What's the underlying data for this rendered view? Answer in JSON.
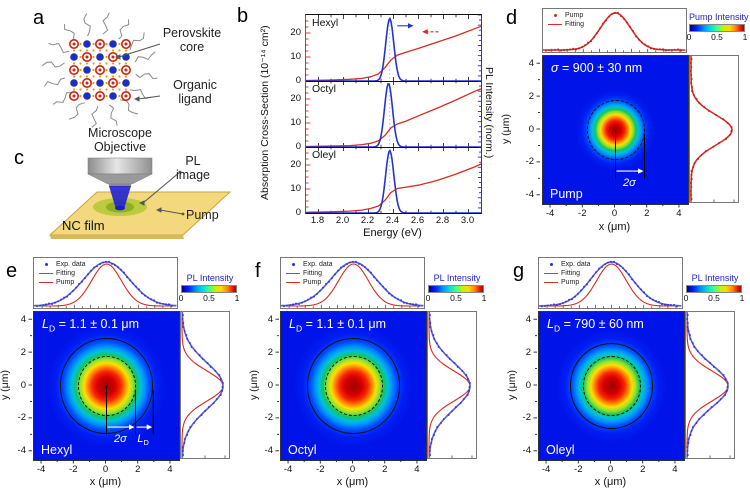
{
  "panel_a": {
    "letter": "a",
    "core_label": "Perovskite\ncore",
    "ligand_label": "Organic\nligand",
    "colors": {
      "cation_red": "#cc2310",
      "anion_blue": "#1c2fbe",
      "lattice_orange": "#f59a00",
      "ligand_gray": "#8a8a8a"
    }
  },
  "panel_c": {
    "letter": "c",
    "objective_label": "Microscope\nObjective",
    "pl_image_label": "PL\nimage",
    "pump_label": "Pump",
    "film_label": "NC film",
    "colors": {
      "film": "#f4d87e",
      "cone": "#2525cf",
      "spot": "#b7c93b"
    }
  },
  "chart_data": [
    {
      "id": "b",
      "letter": "b",
      "type": "line",
      "xlabel": "Energy (eV)",
      "ylabel_left": "Absorption Cross-Section (10⁻¹⁴ cm²)",
      "ylabel_right": "PL Intensity (norm.)",
      "xlim": [
        1.7,
        3.1
      ],
      "ylim": [
        0,
        27.5
      ],
      "x_ticks": [
        "1.8",
        "2.0",
        "2.2",
        "2.4",
        "2.6",
        "2.8",
        "3.0"
      ],
      "y_ticks": [
        0,
        10,
        20
      ],
      "pl_peak_ev": 2.37,
      "colors": {
        "absorption": "#d92b20",
        "pl": "#2433cf"
      },
      "subplots": [
        {
          "label": "Hexyl",
          "absorption": {
            "x": [
              1.7,
              1.9,
              2.05,
              2.15,
              2.22,
              2.28,
              2.33,
              2.38,
              2.43,
              2.5,
              2.6,
              2.75,
              2.9,
              3.05,
              3.1
            ],
            "y": [
              0.2,
              0.4,
              0.7,
              1.1,
              1.8,
              3.0,
              5.5,
              8.8,
              10.8,
              12.0,
              13.6,
              16.2,
              18.8,
              21.8,
              22.8
            ]
          },
          "pl": {
            "center": 2.37,
            "sigma": 0.032,
            "peak": 26
          },
          "arrows": true
        },
        {
          "label": "Octyl",
          "absorption": {
            "x": [
              1.7,
              1.9,
              2.05,
              2.15,
              2.22,
              2.28,
              2.33,
              2.38,
              2.43,
              2.5,
              2.6,
              2.75,
              2.9,
              3.05,
              3.1
            ],
            "y": [
              0.2,
              0.4,
              0.6,
              1.0,
              1.6,
              2.6,
              4.8,
              8.0,
              9.6,
              10.8,
              13.0,
              16.2,
              19.6,
              23.2,
              24.2
            ]
          },
          "pl": {
            "center": 2.36,
            "sigma": 0.032,
            "peak": 26.5
          },
          "arrows": false
        },
        {
          "label": "Oleyl",
          "absorption": {
            "x": [
              1.7,
              1.9,
              2.05,
              2.15,
              2.22,
              2.28,
              2.33,
              2.38,
              2.43,
              2.5,
              2.6,
              2.75,
              2.9,
              3.05,
              3.1
            ],
            "y": [
              0.3,
              0.5,
              0.8,
              1.2,
              1.9,
              2.9,
              5.2,
              8.6,
              10.2,
              10.8,
              11.6,
              13.6,
              16.2,
              19.2,
              20.4
            ]
          },
          "pl": {
            "center": 2.37,
            "sigma": 0.033,
            "peak": 26
          },
          "arrows": false
        }
      ]
    },
    {
      "id": "d",
      "letter": "d",
      "type": "heatmap",
      "xlabel": "x (μm)",
      "ylabel": "y (μm)",
      "x_ticks": [
        -4,
        -2,
        0,
        2,
        4
      ],
      "y_ticks": [
        4,
        2,
        0,
        -2,
        -4
      ],
      "xlim": [
        -4.5,
        4.5
      ],
      "ylim": [
        -4.5,
        4.5
      ],
      "colorbar_title": "Pump Intensity",
      "colorbar_ticks": [
        "0",
        "0.5",
        "1"
      ],
      "legend": [
        {
          "label": "Pump",
          "marker": "dot",
          "color": "#d92b20"
        },
        {
          "label": "Fitting",
          "marker": "line",
          "color": "#d92b20"
        }
      ],
      "annotation": {
        "lead": "σ",
        "sub": "",
        "rest": " = 900 ± 30 nm"
      },
      "corner_label": "Pump",
      "spot_sigma_um": 0.92,
      "circles": [
        {
          "r_um": 1.8,
          "style": "dashed"
        }
      ],
      "profiles": [
        {
          "name": "Fitting",
          "color": "#d92b20",
          "sigma_um": 0.92,
          "dots": true,
          "dot_color": "#b02018"
        }
      ],
      "ruler": {
        "stems_um": [
          0,
          1.8
        ],
        "arrows": [
          {
            "lead": "2σ",
            "sub": "",
            "from_um": 0,
            "to_um": 1.8
          }
        ]
      }
    },
    {
      "id": "e",
      "letter": "e",
      "type": "heatmap",
      "xlabel": "x (μm)",
      "ylabel": "y (μm)",
      "x_ticks": [
        -4,
        -2,
        0,
        2,
        4
      ],
      "y_ticks": [
        4,
        2,
        0,
        -2,
        -4
      ],
      "xlim": [
        -4.5,
        4.5
      ],
      "ylim": [
        -4.5,
        4.5
      ],
      "colorbar_title": "PL Intensity",
      "colorbar_ticks": [
        "0",
        "0.5",
        "1"
      ],
      "legend": [
        {
          "label": "Exp. data",
          "marker": "dot",
          "color": "#2433cf"
        },
        {
          "label": "Fitting",
          "marker": "line",
          "color": "#5b5bd6"
        },
        {
          "label": "Pump",
          "marker": "line",
          "color": "#d92b20"
        }
      ],
      "annotation": {
        "lead": "L",
        "sub": "D",
        "rest": " = 1.1 ± 0.1 μm"
      },
      "corner_label": "Hexyl",
      "spot_sigma_um": 1.38,
      "circles": [
        {
          "r_um": 1.8,
          "style": "dashed"
        },
        {
          "r_um": 2.9,
          "style": "solid"
        }
      ],
      "profiles": [
        {
          "name": "Fitting",
          "color": "#5b5bd6",
          "sigma_um": 1.42,
          "dots": true,
          "dot_color": "#2433cf"
        },
        {
          "name": "Pump",
          "color": "#d92b20",
          "sigma_um": 0.92,
          "dots": false
        }
      ],
      "ruler": {
        "stems_um": [
          0,
          1.8,
          2.9
        ],
        "arrows": [
          {
            "lead": "2σ",
            "sub": "",
            "from_um": 0,
            "to_um": 1.8
          },
          {
            "lead": "L",
            "sub": "D",
            "from_um": 1.8,
            "to_um": 2.9
          }
        ]
      }
    },
    {
      "id": "f",
      "letter": "f",
      "type": "heatmap",
      "xlabel": "x (μm)",
      "ylabel": "y (μm)",
      "x_ticks": [
        -4,
        -2,
        0,
        2,
        4
      ],
      "y_ticks": [
        4,
        2,
        0,
        -2,
        -4
      ],
      "xlim": [
        -4.5,
        4.5
      ],
      "ylim": [
        -4.5,
        4.5
      ],
      "colorbar_title": "PL Intensity",
      "colorbar_ticks": [
        "0",
        "0.5",
        "1"
      ],
      "legend": [
        {
          "label": "Exp. data",
          "marker": "dot",
          "color": "#2433cf"
        },
        {
          "label": "Fitting",
          "marker": "line",
          "color": "#5b5bd6"
        },
        {
          "label": "Pump",
          "marker": "line",
          "color": "#d92b20"
        }
      ],
      "annotation": {
        "lead": "L",
        "sub": "D",
        "rest": " = 1.1 ± 0.1 μm"
      },
      "corner_label": "Octyl",
      "spot_sigma_um": 1.38,
      "circles": [
        {
          "r_um": 1.8,
          "style": "dashed"
        },
        {
          "r_um": 2.9,
          "style": "solid"
        }
      ],
      "profiles": [
        {
          "name": "Fitting",
          "color": "#5b5bd6",
          "sigma_um": 1.42,
          "dots": true,
          "dot_color": "#2433cf"
        },
        {
          "name": "Pump",
          "color": "#d92b20",
          "sigma_um": 0.92,
          "dots": false
        }
      ],
      "ruler": null
    },
    {
      "id": "g",
      "letter": "g",
      "type": "heatmap",
      "xlabel": "x (μm)",
      "ylabel": "y (μm)",
      "x_ticks": [
        -4,
        -2,
        0,
        2,
        4
      ],
      "y_ticks": [
        4,
        2,
        0,
        -2,
        -4
      ],
      "xlim": [
        -4.5,
        4.5
      ],
      "ylim": [
        -4.5,
        4.5
      ],
      "colorbar_title": "PL Intensity",
      "colorbar_ticks": [
        "0",
        "0.5",
        "1"
      ],
      "legend": [
        {
          "label": "Exp. data",
          "marker": "dot",
          "color": "#2433cf"
        },
        {
          "label": "Fitting",
          "marker": "line",
          "color": "#5b5bd6"
        },
        {
          "label": "Pump",
          "marker": "line",
          "color": "#d92b20"
        }
      ],
      "annotation": {
        "lead": "L",
        "sub": "D",
        "rest": " = 790 ± 60 nm"
      },
      "corner_label": "Oleyl",
      "spot_sigma_um": 1.27,
      "circles": [
        {
          "r_um": 1.8,
          "style": "dashed"
        },
        {
          "r_um": 2.6,
          "style": "solid"
        }
      ],
      "profiles": [
        {
          "name": "Fitting",
          "color": "#5b5bd6",
          "sigma_um": 1.3,
          "dots": true,
          "dot_color": "#2433cf"
        },
        {
          "name": "Pump",
          "color": "#d92b20",
          "sigma_um": 0.92,
          "dots": false
        }
      ],
      "ruler": null
    }
  ]
}
